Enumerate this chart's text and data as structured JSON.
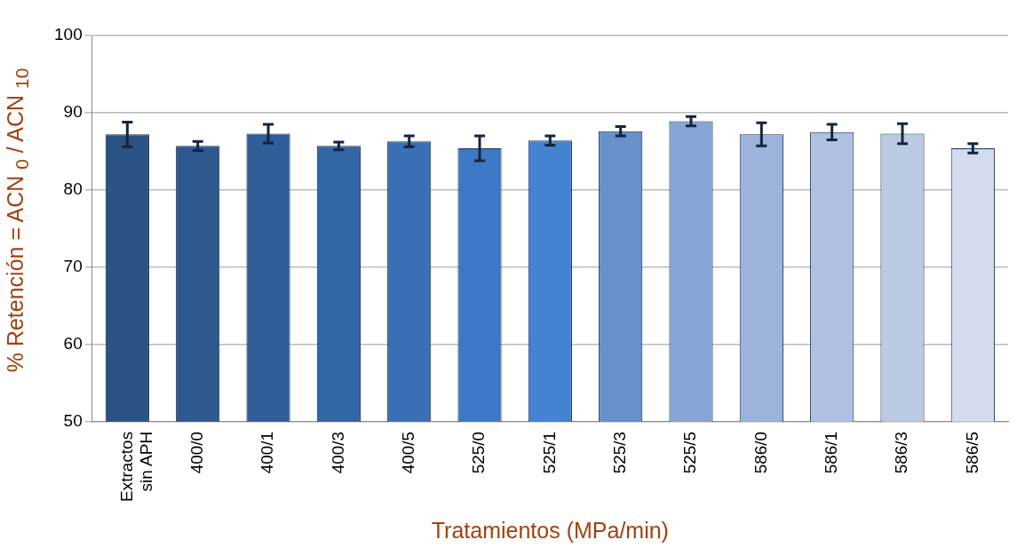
{
  "chart_data": {
    "type": "bar",
    "categories": [
      "Extractos sin APH",
      "400/0",
      "400/1",
      "400/3",
      "400/5",
      "525/0",
      "525/1",
      "525/3",
      "525/5",
      "586/0",
      "586/1",
      "586/3",
      "586/5"
    ],
    "values": [
      87.2,
      85.7,
      87.3,
      85.7,
      86.3,
      85.4,
      86.4,
      87.6,
      88.9,
      87.2,
      87.5,
      87.3,
      85.4
    ],
    "errors": [
      1.6,
      0.6,
      1.2,
      0.5,
      0.7,
      1.6,
      0.6,
      0.6,
      0.6,
      1.5,
      1.0,
      1.3,
      0.6
    ],
    "colors": [
      "#2a5285",
      "#2d5890",
      "#2f5e9a",
      "#3265a6",
      "#3a6fb5",
      "#3d78c6",
      "#4482d2",
      "#6891cc",
      "#86a5d6",
      "#9db3dc",
      "#afc0e1",
      "#bcc9e3",
      "#d3dcee"
    ],
    "xlabel": "Tratamientos (MPa/min)",
    "ylabel": "% Retención = ACN $_{0}$ / ACN $_{10}$",
    "ylim": [
      50,
      100
    ],
    "yticks": [
      50,
      60,
      70,
      80,
      90,
      100
    ],
    "grid": "y",
    "legend": false
  }
}
